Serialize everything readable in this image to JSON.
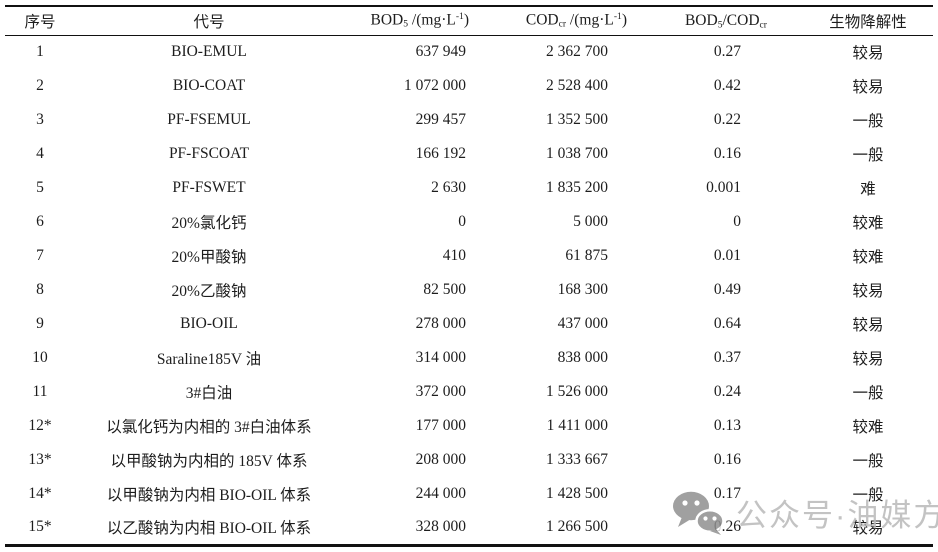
{
  "table": {
    "columns": [
      {
        "key": "no",
        "parts": [
          {
            "t": "序号"
          }
        ]
      },
      {
        "key": "code",
        "parts": [
          {
            "t": "代号"
          }
        ]
      },
      {
        "key": "bod",
        "parts": [
          {
            "t": "BOD"
          },
          {
            "t": "5",
            "s": "sub"
          },
          {
            "t": " /(mg·L"
          },
          {
            "t": "-1",
            "s": "sup"
          },
          {
            "t": ")"
          }
        ]
      },
      {
        "key": "cod",
        "parts": [
          {
            "t": "COD"
          },
          {
            "t": "cr",
            "s": "sub"
          },
          {
            "t": " /(mg·L"
          },
          {
            "t": "-1",
            "s": "sup"
          },
          {
            "t": ")"
          }
        ]
      },
      {
        "key": "ratio",
        "parts": [
          {
            "t": "BOD"
          },
          {
            "t": "5",
            "s": "sub"
          },
          {
            "t": "/COD"
          },
          {
            "t": "cr",
            "s": "sub"
          }
        ]
      },
      {
        "key": "biodeg",
        "parts": [
          {
            "t": "生物降解性"
          }
        ]
      }
    ],
    "rows": [
      [
        "1",
        "BIO-EMUL",
        "637 949",
        "2 362 700",
        "0.27",
        "较易"
      ],
      [
        "2",
        "BIO-COAT",
        "1 072 000",
        "2 528 400",
        "0.42",
        "较易"
      ],
      [
        "3",
        "PF-FSEMUL",
        "299 457",
        "1 352 500",
        "0.22",
        "一般"
      ],
      [
        "4",
        "PF-FSCOAT",
        "166 192",
        "1 038 700",
        "0.16",
        "一般"
      ],
      [
        "5",
        "PF-FSWET",
        "2 630",
        "1 835 200",
        "0.001",
        "难"
      ],
      [
        "6",
        "20%氯化钙",
        "0",
        "5 000",
        "0",
        "较难"
      ],
      [
        "7",
        "20%甲酸钠",
        "410",
        "61 875",
        "0.01",
        "较难"
      ],
      [
        "8",
        "20%乙酸钠",
        "82 500",
        "168 300",
        "0.49",
        "较易"
      ],
      [
        "9",
        "BIO-OIL",
        "278 000",
        "437 000",
        "0.64",
        "较易"
      ],
      [
        "10",
        "Saraline185V 油",
        "314 000",
        "838 000",
        "0.37",
        "较易"
      ],
      [
        "11",
        "3#白油",
        "372 000",
        "1 526 000",
        "0.24",
        "一般"
      ],
      [
        "12*",
        "以氯化钙为内相的 3#白油体系",
        "177 000",
        "1 411 000",
        "0.13",
        "较难"
      ],
      [
        "13*",
        "以甲酸钠为内相的 185V 体系",
        "208 000",
        "1 333 667",
        "0.16",
        "一般"
      ],
      [
        "14*",
        "以甲酸钠为内相 BIO-OIL 体系",
        "244 000",
        "1 428 500",
        "0.17",
        "一般"
      ],
      [
        "15*",
        "以乙酸钠为内相 BIO-OIL 体系",
        "328 000",
        "1 266 500",
        "0.26",
        "较易"
      ]
    ]
  },
  "watermark": {
    "icon": "wechat-icon",
    "text": "公众号·油媒方",
    "icon_color": "#909090",
    "text_color": "#b9b9b9"
  },
  "colors": {
    "background": "#ffffff",
    "text": "#1d1d1d",
    "rule": "#111111"
  }
}
